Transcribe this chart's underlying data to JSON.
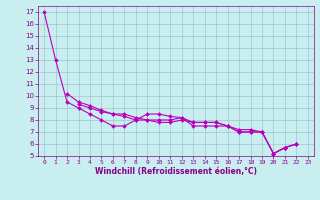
{
  "xlabel": "Windchill (Refroidissement éolien,°C)",
  "background_color": "#c8eef0",
  "line_color": "#bb00bb",
  "grid_color": "#99bbcc",
  "xlim": [
    -0.5,
    23.5
  ],
  "ylim": [
    5,
    17.5
  ],
  "yticks": [
    5,
    6,
    7,
    8,
    9,
    10,
    11,
    12,
    13,
    14,
    15,
    16,
    17
  ],
  "xticks": [
    0,
    1,
    2,
    3,
    4,
    5,
    6,
    7,
    8,
    9,
    10,
    11,
    12,
    13,
    14,
    15,
    16,
    17,
    18,
    19,
    20,
    21,
    22,
    23
  ],
  "series": [
    [
      0,
      17.0
    ],
    [
      1,
      13.0
    ],
    [
      2,
      9.5
    ],
    [
      3,
      9.0
    ],
    [
      4,
      8.5
    ],
    [
      5,
      8.0
    ],
    [
      6,
      7.5
    ],
    [
      7,
      7.5
    ],
    [
      8,
      8.0
    ],
    [
      9,
      8.5
    ],
    [
      10,
      8.5
    ],
    [
      11,
      8.3
    ],
    [
      12,
      8.2
    ],
    [
      13,
      7.5
    ],
    [
      14,
      7.5
    ],
    [
      15,
      7.5
    ],
    [
      16,
      7.5
    ],
    [
      17,
      7.2
    ],
    [
      18,
      7.2
    ],
    [
      19,
      7.0
    ],
    [
      20,
      5.2
    ],
    [
      21,
      5.7
    ],
    [
      22,
      6.0
    ]
  ],
  "series2_start": 2,
  "series2": [
    [
      2,
      10.2
    ],
    [
      3,
      9.5
    ],
    [
      4,
      9.2
    ],
    [
      5,
      8.8
    ],
    [
      6,
      8.5
    ],
    [
      7,
      8.5
    ],
    [
      8,
      8.2
    ],
    [
      9,
      8.0
    ],
    [
      10,
      8.0
    ],
    [
      11,
      8.0
    ],
    [
      12,
      8.2
    ],
    [
      13,
      7.8
    ],
    [
      14,
      7.8
    ],
    [
      15,
      7.8
    ],
    [
      16,
      7.5
    ],
    [
      17,
      7.0
    ],
    [
      18,
      7.0
    ],
    [
      19,
      7.0
    ],
    [
      20,
      5.2
    ],
    [
      21,
      5.7
    ],
    [
      22,
      6.0
    ]
  ],
  "series3": [
    [
      3,
      9.3
    ],
    [
      4,
      9.0
    ],
    [
      5,
      8.7
    ],
    [
      6,
      8.5
    ],
    [
      7,
      8.3
    ],
    [
      8,
      8.0
    ],
    [
      9,
      8.0
    ],
    [
      10,
      7.8
    ],
    [
      11,
      7.8
    ],
    [
      12,
      8.0
    ],
    [
      13,
      7.8
    ],
    [
      14,
      7.8
    ],
    [
      15,
      7.8
    ],
    [
      16,
      7.5
    ],
    [
      17,
      7.0
    ],
    [
      18,
      7.0
    ],
    [
      19,
      7.0
    ],
    [
      20,
      5.2
    ],
    [
      21,
      5.7
    ],
    [
      22,
      6.0
    ]
  ],
  "tick_color": "#880088",
  "label_color": "#880088",
  "spine_color": "#880088"
}
